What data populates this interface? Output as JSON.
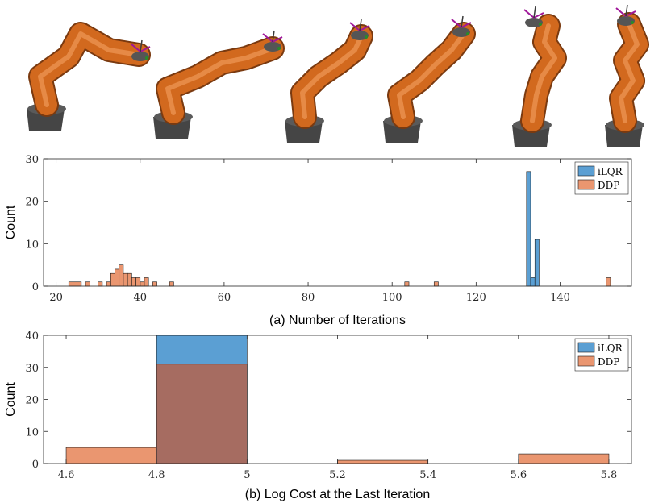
{
  "colors": {
    "ilqr": "#5b9fd3",
    "ddp": "#ea9670",
    "overlap": "#a66c61",
    "robot_link": "#d2691e",
    "robot_base": "#454545"
  },
  "robot_strip": {
    "poses": [
      "pose-1",
      "pose-2",
      "pose-3",
      "pose-4",
      "pose-5",
      "pose-6"
    ]
  },
  "chart_data": [
    {
      "type": "bar",
      "subtype": "histogram",
      "caption": "(a) Number of Iterations",
      "ylabel": "Count",
      "xlim": [
        17,
        157
      ],
      "ylim": [
        0,
        30
      ],
      "xticks": [
        20,
        40,
        60,
        80,
        100,
        120,
        140
      ],
      "yticks": [
        0,
        10,
        20,
        30
      ],
      "legend": {
        "position": "top-right",
        "entries": [
          "iLQR",
          "DDP"
        ]
      },
      "series": [
        {
          "name": "iLQR",
          "color_key": "ilqr",
          "bin_width": 1,
          "bins": [
            {
              "x0": 132,
              "count": 27
            },
            {
              "x0": 133,
              "count": 2
            },
            {
              "x0": 134,
              "count": 11
            }
          ]
        },
        {
          "name": "DDP",
          "color_key": "ddp",
          "bin_width": 1,
          "bins": [
            {
              "x0": 23,
              "count": 1
            },
            {
              "x0": 24,
              "count": 1
            },
            {
              "x0": 25,
              "count": 1
            },
            {
              "x0": 27,
              "count": 1
            },
            {
              "x0": 30,
              "count": 1
            },
            {
              "x0": 32,
              "count": 1
            },
            {
              "x0": 33,
              "count": 3
            },
            {
              "x0": 34,
              "count": 4
            },
            {
              "x0": 35,
              "count": 5
            },
            {
              "x0": 36,
              "count": 3
            },
            {
              "x0": 37,
              "count": 3
            },
            {
              "x0": 38,
              "count": 2
            },
            {
              "x0": 39,
              "count": 2
            },
            {
              "x0": 40,
              "count": 1
            },
            {
              "x0": 41,
              "count": 2
            },
            {
              "x0": 43,
              "count": 1
            },
            {
              "x0": 47,
              "count": 1
            },
            {
              "x0": 103,
              "count": 1
            },
            {
              "x0": 110,
              "count": 1
            },
            {
              "x0": 151,
              "count": 2
            }
          ]
        }
      ]
    },
    {
      "type": "bar",
      "subtype": "histogram",
      "caption": "(b) Log Cost at the Last Iteration",
      "ylabel": "Count",
      "xlim": [
        4.55,
        5.85
      ],
      "ylim": [
        0,
        40
      ],
      "xticks": [
        4.6,
        4.8,
        5,
        5.2,
        5.4,
        5.6,
        5.8
      ],
      "yticks": [
        0,
        10,
        20,
        30,
        40
      ],
      "legend": {
        "position": "top-right",
        "entries": [
          "iLQR",
          "DDP"
        ]
      },
      "series": [
        {
          "name": "iLQR",
          "color_key": "ilqr",
          "bin_width": 0.2,
          "bins": [
            {
              "x0": 4.8,
              "count": 40
            }
          ]
        },
        {
          "name": "DDP",
          "color_key": "ddp",
          "bin_width": 0.2,
          "bins": [
            {
              "x0": 4.6,
              "count": 5
            },
            {
              "x0": 4.8,
              "count": 31
            },
            {
              "x0": 5.2,
              "count": 1
            },
            {
              "x0": 5.6,
              "count": 3
            }
          ]
        }
      ]
    }
  ]
}
